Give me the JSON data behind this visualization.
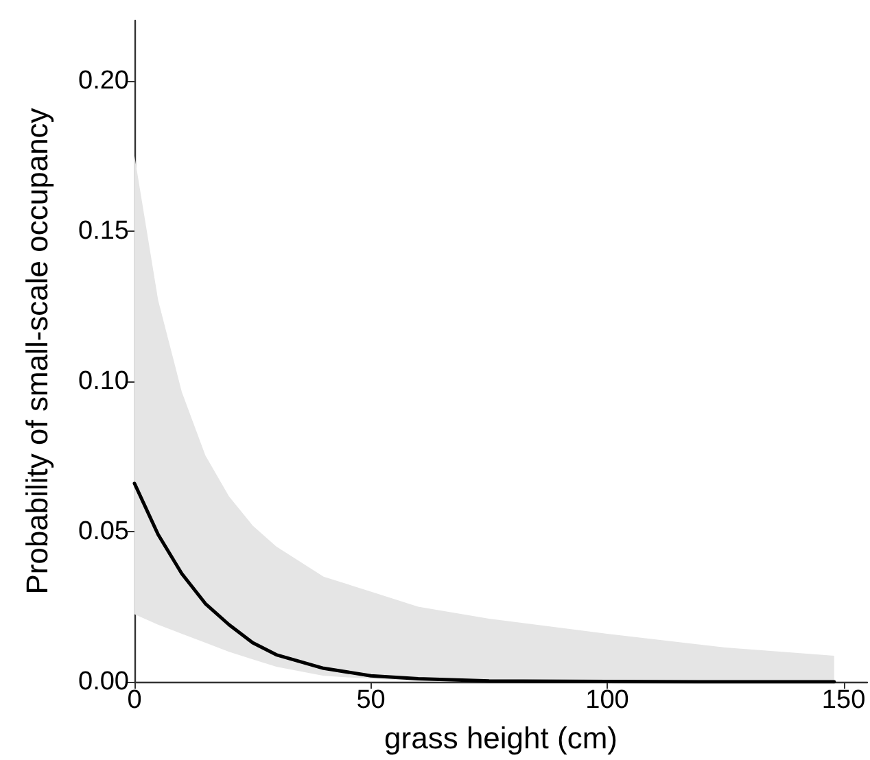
{
  "chart_data": {
    "type": "line",
    "xlabel": "grass height (cm)",
    "ylabel": "Probability of small-scale occupancy",
    "xlim": [
      0,
      155
    ],
    "xticks": [
      0,
      50,
      100,
      150
    ],
    "ylim": [
      0,
      0.22
    ],
    "yticks": [
      {
        "value": 0,
        "label": "0.00"
      },
      {
        "value": 0.05,
        "label": "0.05"
      },
      {
        "value": 0.1,
        "label": "0.10"
      },
      {
        "value": 0.15,
        "label": "0.15"
      },
      {
        "value": 0.2,
        "label": "0.20"
      }
    ],
    "grid": false,
    "marker": "none",
    "line_style": "solid",
    "series": [
      {
        "color": "#000000",
        "x": [
          0,
          5,
          10,
          15,
          20,
          25,
          30,
          40,
          50,
          60,
          75,
          100,
          125,
          148
        ],
        "values": [
          0.066,
          0.049,
          0.036,
          0.026,
          0.019,
          0.013,
          0.009,
          0.0045,
          0.002,
          0.001,
          0.0003,
          0.0001,
          0,
          0
        ],
        "lower": [
          0.0225,
          0.019,
          0.016,
          0.013,
          0.01,
          0.0075,
          0.005,
          0.002,
          0.001,
          0.0003,
          0,
          0,
          0,
          0
        ],
        "upper": [
          0.175,
          0.127,
          0.0965,
          0.0753,
          0.0617,
          0.052,
          0.045,
          0.035,
          0.03,
          0.025,
          0.021,
          0.016,
          0.0114,
          0.0087
        ]
      }
    ]
  }
}
